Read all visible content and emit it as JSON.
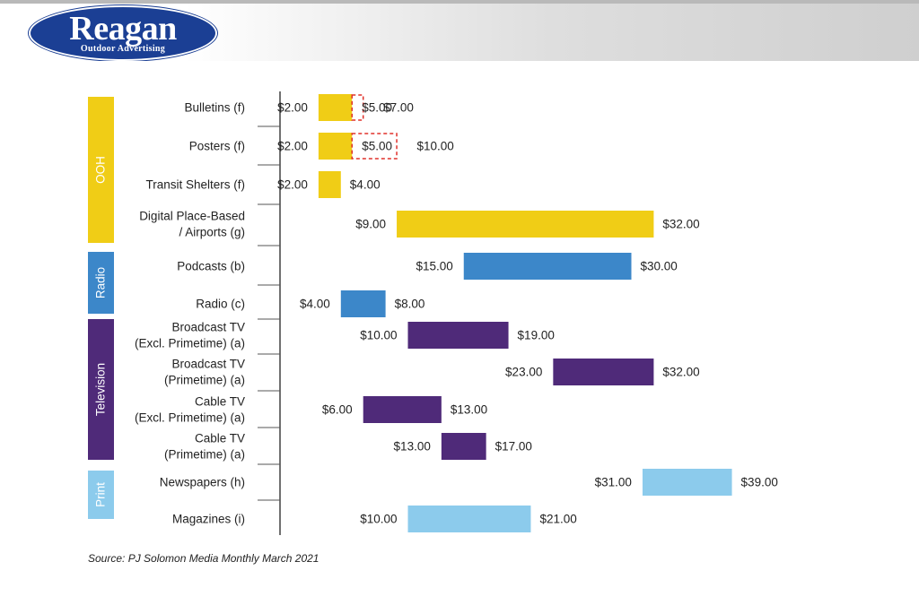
{
  "brand": {
    "name": "Reagan",
    "tagline": "Outdoor Advertising",
    "color": "#1b3f94"
  },
  "chart_data": {
    "type": "bar",
    "subtype": "floating-range",
    "title": "",
    "xlabel": "",
    "ylabel": "",
    "currency": "$",
    "groups": [
      {
        "name": "OOH",
        "color": "#f0cd16",
        "text_color": "#f7e99a",
        "rows": [
          0,
          3
        ]
      },
      {
        "name": "Radio",
        "color": "#3c87c9",
        "text_color": "#ffffff",
        "rows": [
          4,
          5
        ]
      },
      {
        "name": "Television",
        "color": "#4f2a79",
        "text_color": "#ffffff",
        "rows": [
          6,
          9
        ]
      },
      {
        "name": "Print",
        "color": "#8ccbec",
        "text_color": "#ffffff",
        "rows": [
          10,
          11
        ]
      }
    ],
    "series": [
      {
        "category": [
          "Bulletins (f)"
        ],
        "group": "OOH",
        "low": 2.0,
        "high": 7.0,
        "mid": 5.0,
        "mid_label": "$5.00",
        "low_label": "$2.00",
        "high_label": "$7.00",
        "mid_box_to": 6.0
      },
      {
        "category": [
          "Posters (f)"
        ],
        "group": "OOH",
        "low": 2.0,
        "high": 10.0,
        "mid": 5.0,
        "mid_label": "$5.00",
        "low_label": "$2.00",
        "high_label": "$10.00",
        "mid_box_to": 9.0
      },
      {
        "category": [
          "Transit Shelters (f)"
        ],
        "group": "OOH",
        "low": 2.0,
        "high": 4.0,
        "low_label": "$2.00",
        "high_label": "$4.00"
      },
      {
        "category": [
          "Digital Place-Based",
          "/ Airports (g)"
        ],
        "group": "OOH",
        "low": 9.0,
        "high": 32.0,
        "low_label": "$9.00",
        "high_label": "$32.00"
      },
      {
        "category": [
          "Podcasts (b)"
        ],
        "group": "Radio",
        "low": 15.0,
        "high": 30.0,
        "low_label": "$15.00",
        "high_label": "$30.00"
      },
      {
        "category": [
          "Radio (c)"
        ],
        "group": "Radio",
        "low": 4.0,
        "high": 8.0,
        "low_label": "$4.00",
        "high_label": "$8.00"
      },
      {
        "category": [
          "Broadcast TV",
          "(Excl. Primetime) (a)"
        ],
        "group": "Television",
        "low": 10.0,
        "high": 19.0,
        "low_label": "$10.00",
        "high_label": "$19.00"
      },
      {
        "category": [
          "Broadcast TV",
          "(Primetime) (a)"
        ],
        "group": "Television",
        "low": 23.0,
        "high": 32.0,
        "low_label": "$23.00",
        "high_label": "$32.00"
      },
      {
        "category": [
          "Cable TV",
          "(Excl. Primetime) (a)"
        ],
        "group": "Television",
        "low": 6.0,
        "high": 13.0,
        "low_label": "$6.00",
        "high_label": "$13.00"
      },
      {
        "category": [
          "Cable TV",
          "(Primetime) (a)"
        ],
        "group": "Television",
        "low": 13.0,
        "high": 17.0,
        "low_label": "$13.00",
        "high_label": "$17.00"
      },
      {
        "category": [
          "Newspapers (h)"
        ],
        "group": "Print",
        "low": 31.0,
        "high": 39.0,
        "low_label": "$31.00",
        "high_label": "$39.00"
      },
      {
        "category": [
          "Magazines (i)"
        ],
        "group": "Print",
        "low": 10.0,
        "high": 21.0,
        "low_label": "$10.00",
        "high_label": "$21.00"
      }
    ],
    "xlim": [
      0,
      40
    ],
    "grid": false,
    "legend": "none"
  },
  "source": "Source: PJ Solomon Media Monthly March 2021"
}
